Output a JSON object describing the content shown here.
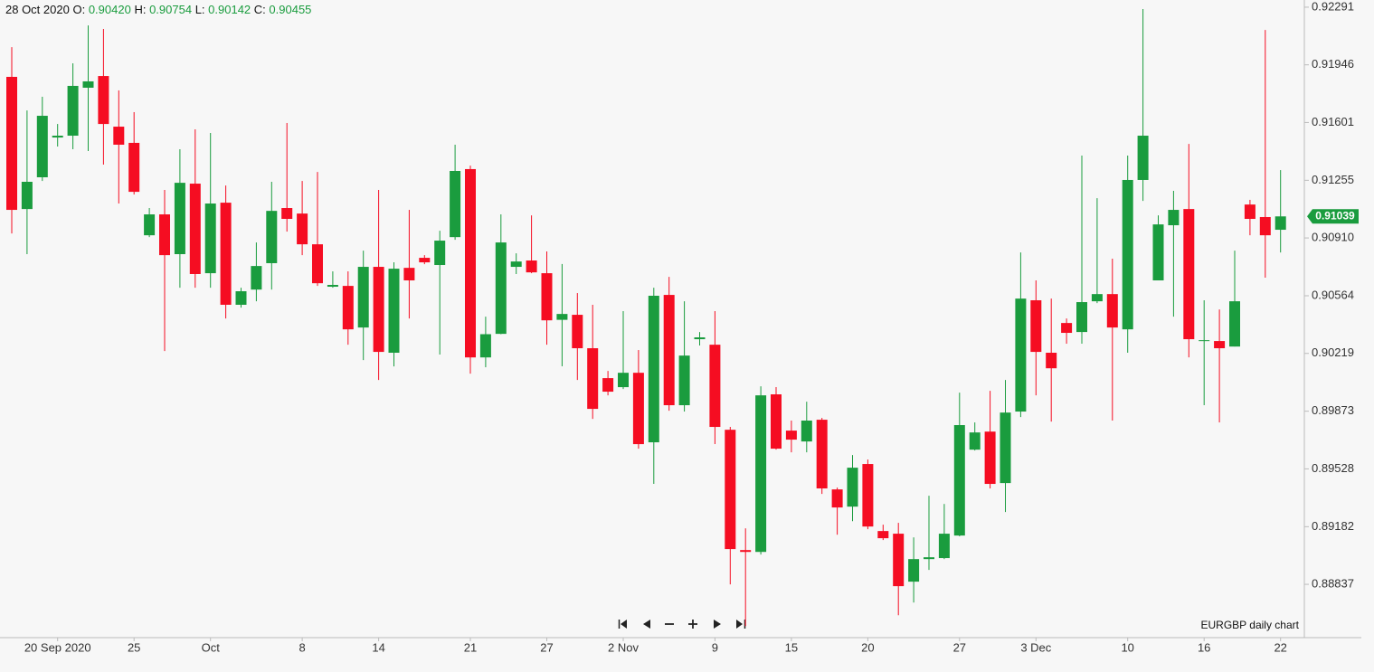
{
  "chart_data": {
    "type": "candlestick",
    "categories": [
      null,
      null,
      null,
      "20 Sep 2020",
      null,
      null,
      null,
      null,
      "25",
      null,
      null,
      null,
      null,
      "Oct",
      null,
      null,
      null,
      null,
      null,
      "8",
      null,
      null,
      null,
      null,
      "14",
      null,
      null,
      null,
      null,
      null,
      "21",
      null,
      null,
      null,
      null,
      "27",
      null,
      null,
      null,
      null,
      "2 Nov",
      null,
      null,
      null,
      null,
      null,
      "9",
      null,
      null,
      null,
      null,
      "15",
      null,
      null,
      null,
      null,
      "20",
      null,
      null,
      null,
      null,
      null,
      "27",
      null,
      null,
      null,
      null,
      "3 Dec",
      null,
      null,
      null,
      null,
      null,
      "10",
      null,
      null,
      null,
      null,
      "16",
      null,
      null,
      null,
      null,
      "22"
    ],
    "open": [
      0.91874,
      0.91083,
      0.91273,
      0.91511,
      0.91522,
      0.91809,
      0.91879,
      0.91576,
      0.91479,
      0.90926,
      0.91051,
      0.90813,
      0.91235,
      0.90699,
      0.91121,
      0.9051,
      0.90601,
      0.90759,
      0.91089,
      0.91056,
      0.90872,
      0.90618,
      0.90623,
      0.90374,
      0.90737,
      0.90223,
      0.90731,
      0.90791,
      0.90748,
      0.90915,
      0.91322,
      0.90195,
      0.90336,
      0.90737,
      0.90775,
      0.90699,
      0.9042,
      0.9045,
      0.9025,
      0.90071,
      0.90017,
      0.90103,
      0.89687,
      0.90569,
      0.89909,
      0.90304,
      0.90271,
      0.89762,
      0.89042,
      0.89031,
      0.89974,
      0.89757,
      0.89692,
      0.89822,
      0.89405,
      0.89302,
      0.89557,
      0.89156,
      0.8914,
      0.88853,
      0.88988,
      0.88994,
      0.89129,
      0.89643,
      0.89751,
      0.89443,
      0.89871,
      0.90537,
      0.90223,
      0.90401,
      0.90347,
      0.90531,
      0.90574,
      0.90363,
      0.91257,
      0.90656,
      0.90986,
      0.91083,
      0.90293,
      0.90293,
      0.9026,
      0.9111,
      0.91035,
      0.90959
    ],
    "high": [
      0.92052,
      0.91673,
      0.91755,
      0.91592,
      0.91955,
      0.92182,
      0.92161,
      0.91793,
      0.91663,
      0.91089,
      0.91197,
      0.91441,
      0.9156,
      0.91538,
      0.91224,
      0.90612,
      0.90883,
      0.91246,
      0.91598,
      0.91251,
      0.91305,
      0.9071,
      0.9071,
      0.90834,
      0.91197,
      0.90764,
      0.91078,
      0.90807,
      0.90953,
      0.91468,
      0.91343,
      0.90439,
      0.91051,
      0.90818,
      0.91045,
      0.90829,
      0.90754,
      0.9058,
      0.9051,
      0.90114,
      0.90472,
      0.90239,
      0.90612,
      0.90677,
      0.90531,
      0.90347,
      0.90472,
      0.89779,
      0.89172,
      0.90022,
      0.90017,
      0.89817,
      0.8993,
      0.89833,
      0.89416,
      0.89611,
      0.89584,
      0.89194,
      0.89205,
      0.89118,
      0.89367,
      0.89318,
      0.89984,
      0.89806,
      0.89995,
      0.9006,
      0.90823,
      0.90656,
      0.90547,
      0.90428,
      0.91403,
      0.91148,
      0.90786,
      0.91403,
      0.9228,
      0.91045,
      0.91192,
      0.91473,
      0.90537,
      0.90482,
      0.90834,
      0.91138,
      0.92155,
      0.91316
    ],
    "low": [
      0.90937,
      0.90813,
      0.91251,
      0.91457,
      0.91441,
      0.9143,
      0.91349,
      0.91116,
      0.9117,
      0.90915,
      0.90233,
      0.90612,
      0.90612,
      0.90612,
      0.90428,
      0.90493,
      0.90531,
      0.90601,
      0.90948,
      0.90807,
      0.90623,
      0.90612,
      0.90271,
      0.90179,
      0.9006,
      0.90141,
      0.90428,
      0.90753,
      0.90212,
      0.90899,
      0.90098,
      0.90136,
      0.90334,
      0.90694,
      0.90699,
      0.90271,
      0.90142,
      0.9006,
      0.89827,
      0.89968,
      0.90006,
      0.89649,
      0.89438,
      0.89876,
      0.89871,
      0.90266,
      0.89676,
      0.88837,
      0.88587,
      0.89015,
      0.89643,
      0.89627,
      0.89627,
      0.89378,
      0.89134,
      0.89215,
      0.89167,
      0.89102,
      0.88652,
      0.88728,
      0.88923,
      0.88988,
      0.89124,
      0.89638,
      0.89411,
      0.8927,
      0.89838,
      0.89968,
      0.89811,
      0.90277,
      0.90277,
      0.9052,
      0.89817,
      0.90223,
      0.91132,
      0.90656,
      0.90439,
      0.90195,
      0.89909,
      0.89806,
      0.9026,
      0.90926,
      0.90672,
      0.90823
    ],
    "close": [
      0.91078,
      0.91246,
      0.91641,
      0.91522,
      0.9182,
      0.91847,
      0.91592,
      0.91468,
      0.91186,
      0.91051,
      0.90807,
      0.9124,
      0.90694,
      0.91116,
      0.9051,
      0.90591,
      0.90742,
      0.91072,
      0.91024,
      0.90872,
      0.90639,
      0.90629,
      0.90363,
      0.90737,
      0.90228,
      0.90726,
      0.90656,
      0.90764,
      0.90894,
      0.91311,
      0.90195,
      0.90334,
      0.90883,
      0.90769,
      0.90704,
      0.90417,
      0.90455,
      0.9025,
      0.89887,
      0.8999,
      0.90103,
      0.89676,
      0.90564,
      0.89909,
      0.90206,
      0.90315,
      0.89779,
      0.89048,
      0.89031,
      0.89968,
      0.89649,
      0.89703,
      0.89817,
      0.89411,
      0.89297,
      0.89535,
      0.89183,
      0.89113,
      0.88826,
      0.88988,
      0.88999,
      0.8914,
      0.8979,
      0.89746,
      0.89438,
      0.89865,
      0.90547,
      0.90228,
      0.9013,
      0.90342,
      0.90526,
      0.90574,
      0.90374,
      0.91257,
      0.91522,
      0.90991,
      0.91078,
      0.90304,
      0.90298,
      0.9025,
      0.90531,
      0.91024,
      0.90926,
      0.91039
    ],
    "up_color": "#1a9c3e",
    "down_color": "#f50d22",
    "ylim": [
      0.88518,
      0.92334
    ],
    "yticks": [
      0.88837,
      0.89182,
      0.89528,
      0.89873,
      0.90219,
      0.90564,
      {
        "value": 0.9091,
        "label": "0.90910"
      },
      0.91255,
      0.91601,
      0.91946,
      0.92291
    ],
    "hover": {
      "date": "28 Oct 2020",
      "fields": [
        {
          "label": "O:",
          "value": "0.90420"
        },
        {
          "label": "H:",
          "value": "0.90754"
        },
        {
          "label": "L:",
          "value": "0.90142"
        },
        {
          "label": "C:",
          "value": "0.90455"
        }
      ]
    },
    "annotation": "EURGBP daily chart"
  }
}
